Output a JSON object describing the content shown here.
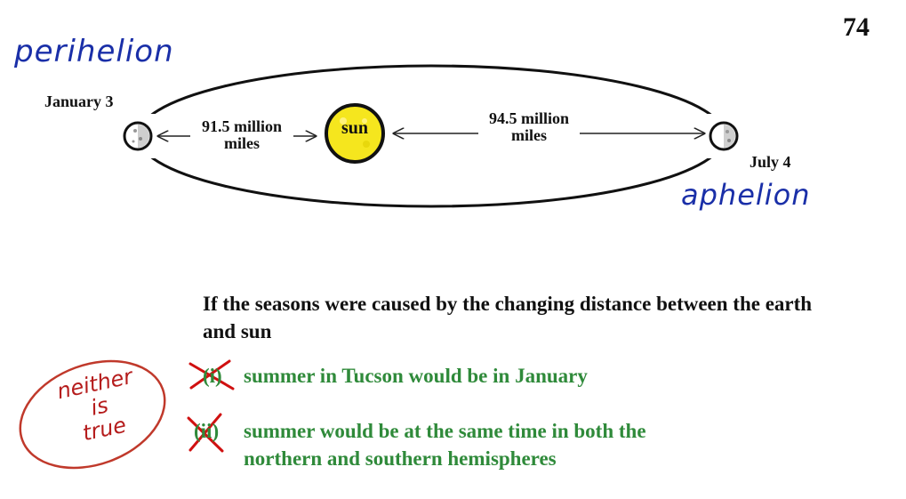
{
  "page_number": "74",
  "handwritten": {
    "perihelion": "perihelion",
    "aphelion": "aphelion"
  },
  "orbit": {
    "left_date": "January 3",
    "right_date": "July 4",
    "sun_label": "sun",
    "near_distance": [
      "91.5 million",
      "miles"
    ],
    "far_distance": [
      "94.5 million",
      "miles"
    ]
  },
  "question": {
    "text": "If the seasons were caused by the changing distance between the earth and sun",
    "options": [
      {
        "number": "(i)",
        "text": "summer in Tucson would be in January"
      },
      {
        "number": "(ii)",
        "text": "summer would be at the same time in both the northern and southern hemispheres"
      }
    ]
  },
  "note": [
    "neither",
    "is",
    "true"
  ],
  "colors": {
    "sun_fill": "#f5e61e",
    "option_text": "#2f8a3a",
    "cross_out": "#d01010",
    "ink_blue": "#1a2fa8",
    "ink_red": "#b51c1c"
  }
}
